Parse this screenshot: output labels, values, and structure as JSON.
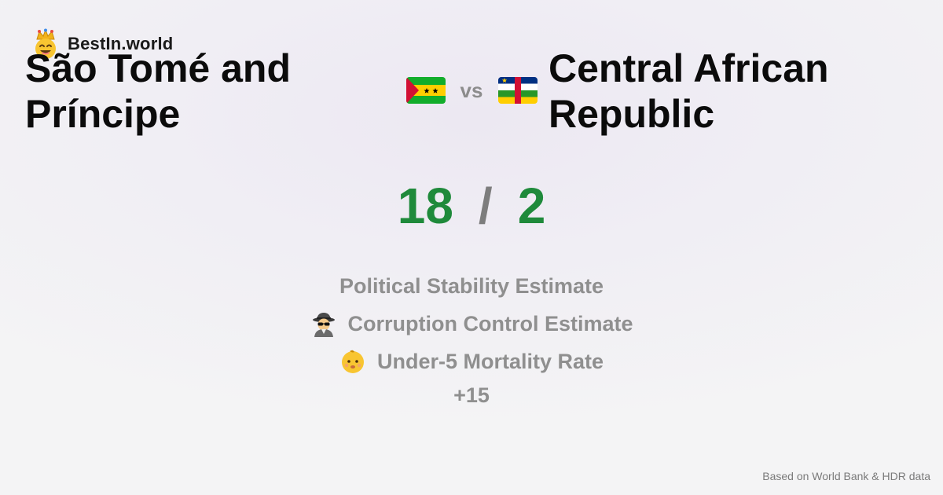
{
  "brand": {
    "name": "BestIn.world",
    "logo_icon": "crowned-smiley-icon"
  },
  "comparison": {
    "left_country": "São Tomé and Príncipe",
    "left_flag_icon": "sao-tome-and-principe-flag-icon",
    "vs_label": "vs",
    "right_country": "Central African Republic",
    "right_flag_icon": "central-african-republic-flag-icon"
  },
  "score": {
    "left": "18",
    "separator": "/",
    "right": "2",
    "win_color": "#1f8a3b"
  },
  "metrics": [
    {
      "label": "Political Stability Estimate",
      "icon": ""
    },
    {
      "label": "Corruption Control Estimate",
      "icon": "spy-detective-icon"
    },
    {
      "label": "Under-5 Mortality Rate",
      "icon": "baby-face-icon"
    }
  ],
  "more_label": "+15",
  "footer": "Based on World Bank & HDR data"
}
